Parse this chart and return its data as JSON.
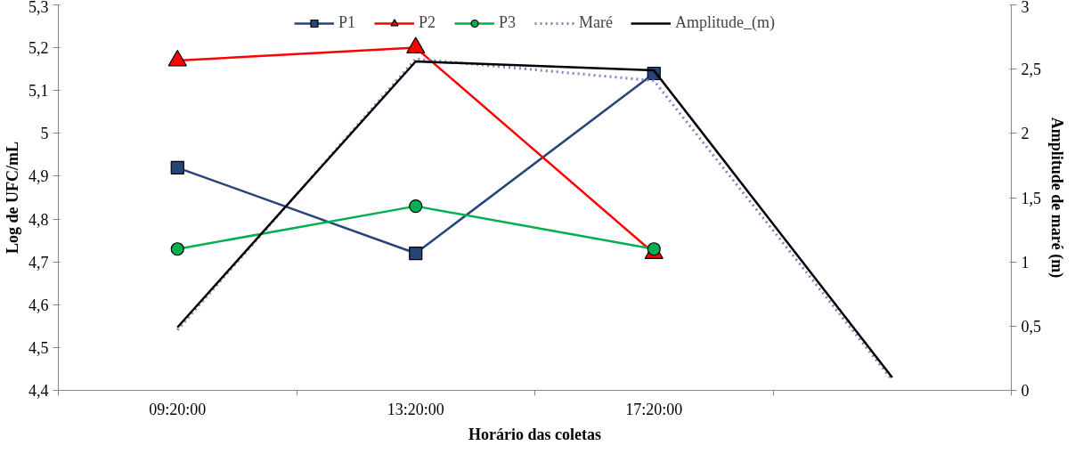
{
  "chart_data": {
    "type": "line",
    "xlabel": "Horário das coletas",
    "ylabel": "Log de UFC/mL",
    "y2label": "Amplitude de maré (m)",
    "categories": [
      "09:20:00",
      "13:20:00",
      "17:20:00",
      null
    ],
    "series": [
      {
        "name": "P1",
        "color": "#264478",
        "marker": "square",
        "line_style": "solid",
        "values": [
          4.92,
          4.72,
          5.14,
          null
        ]
      },
      {
        "name": "P2",
        "color": "#ff0000",
        "marker": "triangle",
        "line_style": "solid",
        "values": [
          5.17,
          5.2,
          4.72,
          null
        ]
      },
      {
        "name": "P3",
        "color": "#00b050",
        "marker": "circle",
        "line_style": "solid",
        "values": [
          4.73,
          4.83,
          4.73,
          null
        ]
      },
      {
        "name": "Maré",
        "color": "#8e7cc3",
        "marker": "none",
        "line_style": "dotted",
        "axis": "y2",
        "values": [
          0.47,
          2.58,
          2.41,
          0.08
        ]
      },
      {
        "name": "Amplitude_(m)",
        "color": "#000000",
        "marker": "none",
        "line_style": "solid",
        "axis": "y2",
        "values": [
          0.49,
          2.56,
          2.49,
          0.1
        ]
      }
    ],
    "ylim": [
      4.4,
      5.3
    ],
    "yticks": [
      {
        "value": 4.4,
        "label": "4,4"
      },
      {
        "value": 4.5,
        "label": "4,5"
      },
      {
        "value": 4.6,
        "label": "4,6"
      },
      {
        "value": 4.7,
        "label": "4,7"
      },
      {
        "value": 4.8,
        "label": "4,8"
      },
      {
        "value": 4.9,
        "label": "4,9"
      },
      5,
      {
        "value": 5.1,
        "label": "5,1"
      },
      {
        "value": 5.2,
        "label": "5,2"
      },
      {
        "value": 5.3,
        "label": "5,3"
      }
    ],
    "y2lim": [
      0,
      3
    ],
    "y2ticks": [
      0,
      {
        "value": 0.5,
        "label": "0,5"
      },
      1,
      {
        "value": 1.5,
        "label": "1,5"
      },
      2,
      {
        "value": 2.5,
        "label": "2,5"
      },
      3
    ],
    "grid": false,
    "legend": "top"
  }
}
